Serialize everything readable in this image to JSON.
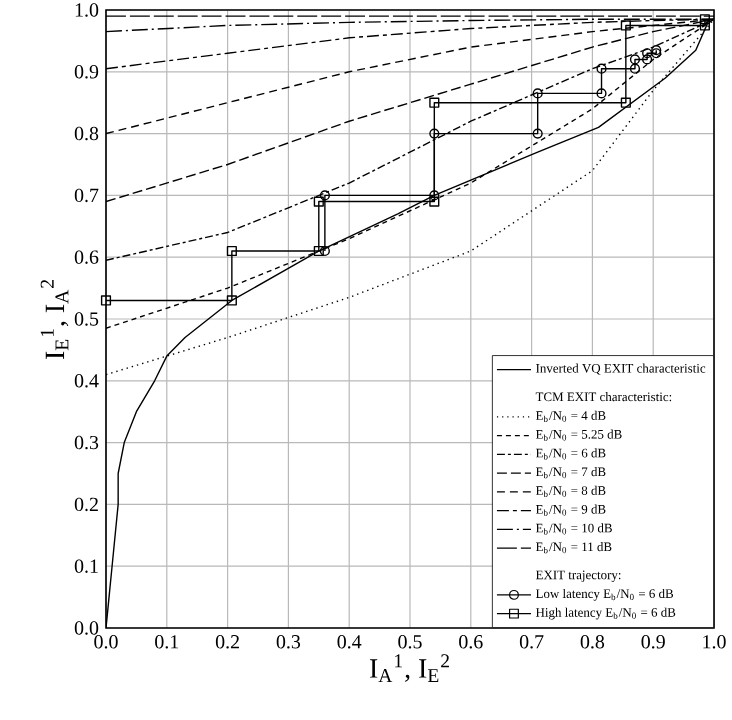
{
  "chart_data": {
    "type": "line",
    "xlabel": "I$_{A}$$^{1}$, I$_{E}$$^{2}$",
    "ylabel": "I$_{E}$$^{1}$, I$_{A}$$^{2}$",
    "xlim": [
      0,
      1
    ],
    "ylim": [
      0,
      1
    ],
    "xticks": [
      {
        "value": 0,
        "label": "0.0"
      },
      0.1,
      0.2,
      0.3,
      0.4,
      0.5,
      0.6,
      0.7,
      0.8,
      0.9,
      {
        "value": 1,
        "label": "1.0"
      }
    ],
    "yticks": [
      {
        "value": 0,
        "label": "0.0"
      },
      0.1,
      0.2,
      0.3,
      0.4,
      0.5,
      0.6,
      0.7,
      0.8,
      0.9,
      {
        "value": 1,
        "label": "1.0"
      }
    ],
    "grid": true,
    "legend": "bottom right",
    "marker": "none",
    "annotations": [
      "TCM EXIT characteristic:",
      "EXIT trajectory:"
    ],
    "series": [
      {
        "name": "Inverted VQ EXIT characteristic",
        "color": "#000000",
        "line_style": "solid",
        "x": [
          0,
          0.005,
          0.01,
          0.015,
          0.02,
          0.02,
          0.03,
          0.05,
          0.08,
          0.1,
          0.13,
          0.207,
          0.35,
          0.48,
          0.54,
          0.71,
          0.81,
          0.92,
          0.97,
          0.99
        ],
        "values": [
          0,
          0.05,
          0.1,
          0.15,
          0.2,
          0.25,
          0.3,
          0.35,
          0.4,
          0.44,
          0.47,
          0.53,
          0.61,
          0.67,
          0.7,
          0.77,
          0.81,
          0.89,
          0.935,
          0.98
        ]
      },
      {
        "name": "E$_{b}$/N$_{0}$ = 4 dB",
        "color": "#000000",
        "line_style": "dotted",
        "x": [
          0,
          0.2,
          0.4,
          0.6,
          0.8,
          0.9,
          1
        ],
        "values": [
          0.41,
          0.47,
          0.535,
          0.61,
          0.74,
          0.87,
          0.985
        ]
      },
      {
        "name": "E$_{b}$/N$_{0}$ = 5.25 dB",
        "color": "#000000",
        "line_style": "dashed",
        "x": [
          0,
          0.2,
          0.4,
          0.6,
          0.8,
          0.9,
          1
        ],
        "values": [
          0.485,
          0.55,
          0.63,
          0.72,
          0.84,
          0.92,
          0.985
        ]
      },
      {
        "name": "E$_{b}$/N$_{0}$ = 6 dB",
        "color": "#000000",
        "line_style": "dashed",
        "x": [
          0,
          0.2,
          0.4,
          0.6,
          0.8,
          0.9,
          1
        ],
        "values": [
          0.595,
          0.64,
          0.72,
          0.82,
          0.905,
          0.94,
          0.985
        ]
      },
      {
        "name": "E$_{b}$/N$_{0}$ = 7 dB",
        "color": "#000000",
        "line_style": "dashed",
        "x": [
          0,
          0.2,
          0.4,
          0.6,
          0.8,
          0.9,
          1
        ],
        "values": [
          0.69,
          0.75,
          0.82,
          0.88,
          0.94,
          0.965,
          0.985
        ]
      },
      {
        "name": "E$_{b}$/N$_{0}$ = 8 dB",
        "color": "#000000",
        "line_style": "dashed",
        "x": [
          0,
          0.2,
          0.4,
          0.6,
          0.8,
          0.9,
          1
        ],
        "values": [
          0.8,
          0.85,
          0.9,
          0.94,
          0.965,
          0.975,
          0.985
        ]
      },
      {
        "name": "E$_{b}$/N$_{0}$ = 9 dB",
        "color": "#000000",
        "line_style": "dashed",
        "x": [
          0,
          0.2,
          0.4,
          0.6,
          0.8,
          0.9,
          1
        ],
        "values": [
          0.905,
          0.93,
          0.955,
          0.97,
          0.98,
          0.983,
          0.985
        ]
      },
      {
        "name": "E$_{b}$/N$_{0}$ = 10 dB",
        "color": "#000000",
        "line_style": "dashed",
        "x": [
          0,
          0.2,
          0.4,
          0.6,
          0.8,
          0.9,
          1
        ],
        "values": [
          0.965,
          0.975,
          0.98,
          0.983,
          0.985,
          0.985,
          0.985
        ]
      },
      {
        "name": "E$_{b}$/N$_{0}$ = 11 dB",
        "color": "#000000",
        "line_style": "dashed",
        "x": [
          0,
          0.2,
          0.4,
          0.6,
          0.8,
          0.9,
          1
        ],
        "values": [
          0.99,
          0.99,
          0.99,
          0.99,
          0.99,
          0.99,
          0.99
        ]
      },
      {
        "name": "Low latency E$_{b}$/N$_{0}$ = 6 dB",
        "color": "#000000",
        "line_style": "solid",
        "marker": "circle",
        "x": [
          0.36,
          0.36,
          0.54,
          0.54,
          0.71,
          0.71,
          0.815,
          0.815,
          0.87,
          0.87,
          0.89,
          0.89,
          0.905,
          0.905
        ],
        "values": [
          0.61,
          0.7,
          0.7,
          0.8,
          0.8,
          0.865,
          0.865,
          0.905,
          0.905,
          0.92,
          0.92,
          0.93,
          0.93,
          0.935
        ]
      },
      {
        "name": "High latency E$_{b}$/N$_{0}$ = 6 dB",
        "color": "#000000",
        "line_style": "solid",
        "marker": "square",
        "x": [
          0,
          0.207,
          0.207,
          0.35,
          0.35,
          0.54,
          0.54,
          0.855,
          0.855,
          0.985,
          0.985
        ],
        "values": [
          0.53,
          0.53,
          0.61,
          0.61,
          0.69,
          0.69,
          0.85,
          0.85,
          0.975,
          0.975,
          0.985
        ]
      }
    ]
  }
}
